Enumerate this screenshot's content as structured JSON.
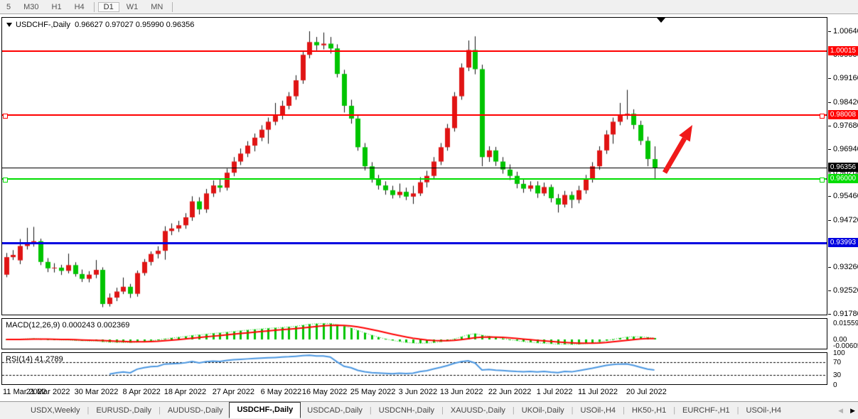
{
  "toolbar": {
    "timeframes": [
      "5",
      "M30",
      "H1",
      "H4",
      "D1",
      "W1",
      "MN"
    ],
    "active": "D1"
  },
  "chart_header": {
    "symbol_label": "USDCHF-,Daily",
    "open": "0.96627",
    "high": "0.97027",
    "low": "0.95990",
    "close": "0.96356"
  },
  "price_axis": {
    "ticks": [
      "1.00640",
      "0.99900",
      "0.99160",
      "0.98420",
      "0.97680",
      "0.96940",
      "0.96200",
      "0.95460",
      "0.94720",
      "0.93980",
      "0.93260",
      "0.92520",
      "0.91780"
    ]
  },
  "hlines": [
    {
      "id": "resistance-upper",
      "price": 1.00015,
      "label": "1.00015",
      "color": "#ff0000",
      "thickness": 2,
      "text_color": "#fff",
      "handles": false
    },
    {
      "id": "resistance-mid",
      "price": 0.98008,
      "label": "0.98008",
      "color": "#ff0000",
      "thickness": 2,
      "text_color": "#fff",
      "handles": true
    },
    {
      "id": "bid-price",
      "price": 0.96356,
      "label": "0.96356",
      "color": "#000000",
      "thickness": 1,
      "text_color": "#fff",
      "handles": false
    },
    {
      "id": "support-green",
      "price": 0.96,
      "label": "0.96000",
      "color": "#00dd00",
      "thickness": 2,
      "text_color": "#fff",
      "handles": true
    },
    {
      "id": "support-blue",
      "price": 0.93993,
      "label": "0.93993",
      "color": "#0000e0",
      "thickness": 3,
      "text_color": "#fff",
      "handles": false
    }
  ],
  "indicators": {
    "macd": {
      "label": "MACD(12,26,9)",
      "value1": "0.000243",
      "value2": "0.002369",
      "axis_labels": [
        {
          "text": "0.015596",
          "value": 0.015596
        },
        {
          "text": "0.00",
          "value": 0.0
        },
        {
          "text": "-0.006055",
          "value": -0.006055
        }
      ],
      "histogram_color": "#00c400",
      "signal_color": "#ff0000"
    },
    "rsi": {
      "label": "RSI(14)",
      "value": "41.2789",
      "levels": [
        {
          "text": "100",
          "value": 100
        },
        {
          "text": "70",
          "value": 70,
          "dashed": true
        },
        {
          "text": "30",
          "value": 30,
          "dashed": true
        },
        {
          "text": "0",
          "value": 0
        }
      ],
      "line_color": "#4a96e0"
    }
  },
  "date_axis": {
    "labels": [
      "11 Mar 2022",
      "21 Mar 2022",
      "30 Mar 2022",
      "8 Apr 2022",
      "18 Apr 2022",
      "27 Apr 2022",
      "6 May 2022",
      "16 May 2022",
      "25 May 2022",
      "3 Jun 2022",
      "13 Jun 2022",
      "22 Jun 2022",
      "1 Jul 2022",
      "11 Jul 2022",
      "20 Jul 2022"
    ],
    "indices": [
      0,
      6,
      13,
      20,
      26,
      33,
      40,
      46,
      53,
      60,
      66,
      73,
      80,
      86,
      93
    ]
  },
  "tabs": {
    "items": [
      "USDX,Weekly",
      "EURUSD-,Daily",
      "AUDUSD-,Daily",
      "USDCHF-,Daily",
      "USDCAD-,Daily",
      "USDCNH-,Daily",
      "XAUUSD-,Daily",
      "UKOil-,Daily",
      "USOil-,H4",
      "HK50-,H1",
      "EURCHF-,H1",
      "USOil-,H4"
    ],
    "active_index": 3,
    "scroll_left_enabled": false,
    "scroll_right_enabled": true
  },
  "annotation": {
    "shape": "arrow-up-right",
    "color": "#f01a1a"
  },
  "chart_data": {
    "type": "candlestick",
    "symbol": "USDCHF",
    "timeframe": "Daily",
    "bull_color": "#e01414",
    "bear_color": "#00c400",
    "wick_color": "#111111",
    "price_min": 0.9178,
    "price_max": 1.0064,
    "candles": [
      [
        "2022-03-11",
        0.93,
        0.9368,
        0.9292,
        0.9355
      ],
      [
        "2022-03-14",
        0.9355,
        0.9377,
        0.9346,
        0.9362
      ],
      [
        "2022-03-15",
        0.9345,
        0.9412,
        0.9333,
        0.939
      ],
      [
        "2022-03-16",
        0.939,
        0.9447,
        0.9379,
        0.94
      ],
      [
        "2022-03-17",
        0.94,
        0.945,
        0.9388,
        0.9405
      ],
      [
        "2022-03-18",
        0.9405,
        0.9413,
        0.933,
        0.934
      ],
      [
        "2022-03-21",
        0.934,
        0.9352,
        0.9308,
        0.932
      ],
      [
        "2022-03-22",
        0.932,
        0.9336,
        0.9307,
        0.9322
      ],
      [
        "2022-03-23",
        0.9322,
        0.9331,
        0.9299,
        0.9312
      ],
      [
        "2022-03-24",
        0.9312,
        0.9366,
        0.9304,
        0.933
      ],
      [
        "2022-03-25",
        0.933,
        0.9339,
        0.9294,
        0.9302
      ],
      [
        "2022-03-28",
        0.9302,
        0.9316,
        0.9277,
        0.9287
      ],
      [
        "2022-03-29",
        0.9287,
        0.9311,
        0.9276,
        0.93
      ],
      [
        "2022-03-30",
        0.93,
        0.9346,
        0.9289,
        0.9315
      ],
      [
        "2022-03-31",
        0.9315,
        0.9323,
        0.9198,
        0.9208
      ],
      [
        "2022-04-01",
        0.9208,
        0.9241,
        0.92,
        0.9228
      ],
      [
        "2022-04-04",
        0.9228,
        0.9259,
        0.9217,
        0.9247
      ],
      [
        "2022-04-05",
        0.9247,
        0.9291,
        0.9239,
        0.9262
      ],
      [
        "2022-04-06",
        0.9262,
        0.9271,
        0.9227,
        0.924
      ],
      [
        "2022-04-07",
        0.924,
        0.9313,
        0.9231,
        0.9305
      ],
      [
        "2022-04-08",
        0.9305,
        0.9349,
        0.9297,
        0.934
      ],
      [
        "2022-04-11",
        0.934,
        0.9373,
        0.9329,
        0.9365
      ],
      [
        "2022-04-12",
        0.9365,
        0.9389,
        0.9351,
        0.9375
      ],
      [
        "2022-04-13",
        0.9375,
        0.9452,
        0.9347,
        0.9437
      ],
      [
        "2022-04-14",
        0.9437,
        0.9461,
        0.9424,
        0.9445
      ],
      [
        "2022-04-15",
        0.9445,
        0.9469,
        0.9434,
        0.9455
      ],
      [
        "2022-04-18",
        0.9455,
        0.9493,
        0.9444,
        0.948
      ],
      [
        "2022-04-19",
        0.948,
        0.9546,
        0.9469,
        0.953
      ],
      [
        "2022-04-20",
        0.953,
        0.9543,
        0.9489,
        0.9505
      ],
      [
        "2022-04-21",
        0.9505,
        0.9569,
        0.9494,
        0.9555
      ],
      [
        "2022-04-22",
        0.9555,
        0.9596,
        0.9544,
        0.958
      ],
      [
        "2022-04-25",
        0.958,
        0.9601,
        0.9559,
        0.9573
      ],
      [
        "2022-04-26",
        0.9573,
        0.9633,
        0.9564,
        0.962
      ],
      [
        "2022-04-27",
        0.962,
        0.9669,
        0.9609,
        0.9655
      ],
      [
        "2022-04-28",
        0.9655,
        0.9696,
        0.9644,
        0.968
      ],
      [
        "2022-04-29",
        0.968,
        0.9719,
        0.9669,
        0.9705
      ],
      [
        "2022-05-02",
        0.9705,
        0.9743,
        0.9687,
        0.973
      ],
      [
        "2022-05-03",
        0.973,
        0.9769,
        0.9719,
        0.9755
      ],
      [
        "2022-05-04",
        0.9755,
        0.9793,
        0.9711,
        0.978
      ],
      [
        "2022-05-05",
        0.978,
        0.9839,
        0.9769,
        0.98
      ],
      [
        "2022-05-06",
        0.98,
        0.9846,
        0.9787,
        0.983
      ],
      [
        "2022-05-09",
        0.983,
        0.9873,
        0.9819,
        0.986
      ],
      [
        "2022-05-10",
        0.986,
        0.9926,
        0.9849,
        0.991
      ],
      [
        "2022-05-11",
        0.991,
        1.0001,
        0.9899,
        0.999
      ],
      [
        "2022-05-12",
        0.999,
        1.0064,
        0.9979,
        1.003
      ],
      [
        "2022-05-13",
        1.003,
        1.0046,
        1.0004,
        1.002
      ],
      [
        "2022-05-16",
        1.002,
        1.006,
        1.0007,
        1.0025
      ],
      [
        "2022-05-17",
        1.0025,
        1.0046,
        0.9994,
        1.001
      ],
      [
        "2022-05-18",
        1.001,
        1.0023,
        0.9919,
        0.993
      ],
      [
        "2022-05-19",
        0.993,
        0.9943,
        0.9809,
        0.983
      ],
      [
        "2022-05-20",
        0.983,
        0.9849,
        0.9774,
        0.979
      ],
      [
        "2022-05-23",
        0.979,
        0.9801,
        0.9689,
        0.97
      ],
      [
        "2022-05-24",
        0.97,
        0.9713,
        0.9627,
        0.964
      ],
      [
        "2022-05-25",
        0.964,
        0.9653,
        0.9589,
        0.96
      ],
      [
        "2022-05-26",
        0.96,
        0.9613,
        0.9567,
        0.958
      ],
      [
        "2022-05-27",
        0.958,
        0.9593,
        0.9551,
        0.9565
      ],
      [
        "2022-05-30",
        0.9565,
        0.9579,
        0.9539,
        0.955
      ],
      [
        "2022-05-31",
        0.955,
        0.9586,
        0.9541,
        0.956
      ],
      [
        "2022-06-01",
        0.956,
        0.9573,
        0.9534,
        0.9545
      ],
      [
        "2022-06-02",
        0.9545,
        0.9579,
        0.9522,
        0.9555
      ],
      [
        "2022-06-03",
        0.9555,
        0.9606,
        0.9547,
        0.959
      ],
      [
        "2022-06-06",
        0.959,
        0.9626,
        0.9574,
        0.961
      ],
      [
        "2022-06-07",
        0.961,
        0.9669,
        0.9599,
        0.9655
      ],
      [
        "2022-06-08",
        0.9655,
        0.9713,
        0.9644,
        0.97
      ],
      [
        "2022-06-09",
        0.97,
        0.9773,
        0.9689,
        0.976
      ],
      [
        "2022-06-10",
        0.976,
        0.9873,
        0.9749,
        0.986
      ],
      [
        "2022-06-13",
        0.986,
        0.9963,
        0.9849,
        0.995
      ],
      [
        "2022-06-14",
        0.995,
        1.0035,
        0.9939,
        1.0005
      ],
      [
        "2022-06-15",
        1.0005,
        1.0048,
        0.9929,
        0.9945
      ],
      [
        "2022-06-16",
        0.9945,
        0.9959,
        0.964,
        0.9669
      ],
      [
        "2022-06-17",
        0.9669,
        0.9703,
        0.9654,
        0.969
      ],
      [
        "2022-06-20",
        0.969,
        0.9701,
        0.9641,
        0.9655
      ],
      [
        "2022-06-21",
        0.9655,
        0.9669,
        0.9617,
        0.963
      ],
      [
        "2022-06-22",
        0.963,
        0.9646,
        0.9597,
        0.961
      ],
      [
        "2022-06-23",
        0.961,
        0.9623,
        0.9571,
        0.9585
      ],
      [
        "2022-06-24",
        0.9585,
        0.9599,
        0.9557,
        0.957
      ],
      [
        "2022-06-27",
        0.957,
        0.9593,
        0.9561,
        0.958
      ],
      [
        "2022-06-28",
        0.958,
        0.9593,
        0.9541,
        0.9555
      ],
      [
        "2022-06-29",
        0.9555,
        0.9589,
        0.9547,
        0.9575
      ],
      [
        "2022-06-30",
        0.9575,
        0.9583,
        0.9527,
        0.954
      ],
      [
        "2022-07-01",
        0.954,
        0.9553,
        0.9495,
        0.952
      ],
      [
        "2022-07-04",
        0.952,
        0.9563,
        0.9511,
        0.955
      ],
      [
        "2022-07-05",
        0.955,
        0.9561,
        0.9509,
        0.9535
      ],
      [
        "2022-07-06",
        0.9535,
        0.9579,
        0.9524,
        0.9565
      ],
      [
        "2022-07-07",
        0.9565,
        0.9613,
        0.9554,
        0.96
      ],
      [
        "2022-07-08",
        0.96,
        0.9653,
        0.9589,
        0.964
      ],
      [
        "2022-07-11",
        0.964,
        0.9703,
        0.9629,
        0.969
      ],
      [
        "2022-07-12",
        0.969,
        0.9753,
        0.9679,
        0.974
      ],
      [
        "2022-07-13",
        0.974,
        0.9793,
        0.9711,
        0.978
      ],
      [
        "2022-07-14",
        0.978,
        0.9839,
        0.9769,
        0.98
      ],
      [
        "2022-07-15",
        0.98,
        0.988,
        0.9787,
        0.9805
      ],
      [
        "2022-07-18",
        0.9805,
        0.9819,
        0.9757,
        0.977
      ],
      [
        "2022-07-19",
        0.977,
        0.9783,
        0.9707,
        0.972
      ],
      [
        "2022-07-20",
        0.972,
        0.9733,
        0.964,
        0.9663
      ],
      [
        "2022-07-21",
        0.96627,
        0.97027,
        0.9599,
        0.96356
      ]
    ]
  }
}
